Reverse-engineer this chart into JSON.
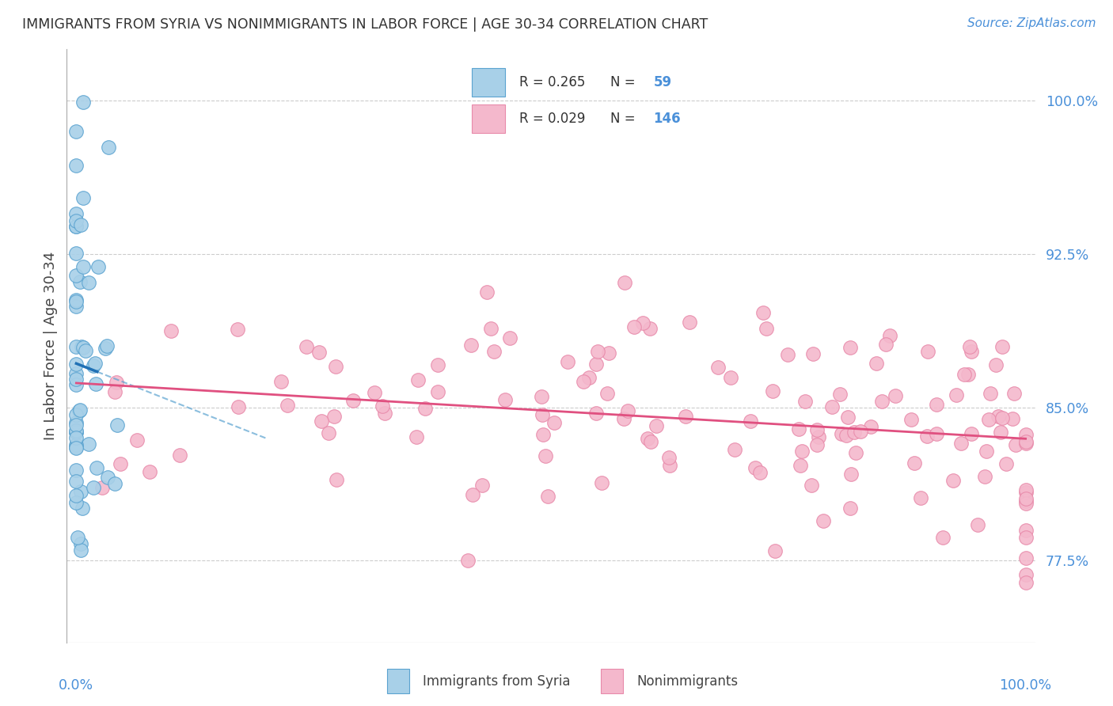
{
  "title": "IMMIGRANTS FROM SYRIA VS NONIMMIGRANTS IN LABOR FORCE | AGE 30-34 CORRELATION CHART",
  "source": "Source: ZipAtlas.com",
  "ylabel": "In Labor Force | Age 30-34",
  "color_blue": "#a8d0e8",
  "color_blue_line": "#2171b5",
  "color_blue_dark": "#5ba3d0",
  "color_pink": "#f4b8cc",
  "color_pink_line": "#e05080",
  "color_pink_dark": "#e88aaa",
  "color_title": "#333333",
  "color_axis_label": "#444444",
  "color_tick_blue": "#4a90d9",
  "background_color": "#ffffff",
  "grid_color": "#cccccc",
  "yticks": [
    77.5,
    85.0,
    92.5,
    100.0
  ],
  "ytick_labels": [
    "77.5%",
    "85.0%",
    "92.5%",
    "100.0%"
  ],
  "ymin": 73.5,
  "ymax": 102.5,
  "xmin": -0.01,
  "xmax": 1.01,
  "legend_text1": "R = 0.265   N =   59",
  "legend_text2": "R = 0.029   N = 146",
  "bottom_label1": "Immigrants from Syria",
  "bottom_label2": "Nonimmigrants"
}
